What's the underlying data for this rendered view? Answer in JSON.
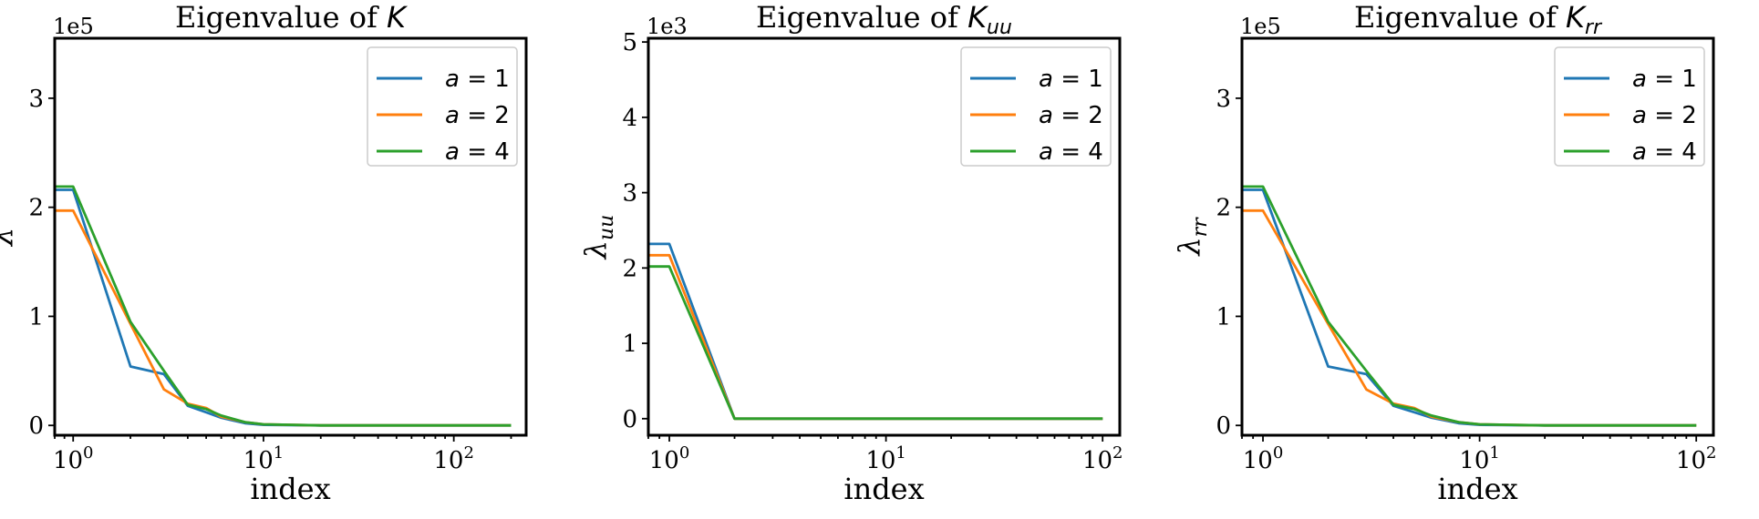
{
  "colors": {
    "a1": "#1f77b4",
    "a2": "#ff7f0e",
    "a4": "#2ca02c"
  },
  "chart_data": [
    {
      "type": "line",
      "title": "Eigenvalue of K",
      "title_parts": {
        "base": "Eigenvalue of ",
        "symbol": "K",
        "sub": ""
      },
      "xlabel": "index",
      "ylabel": "λ",
      "ylabel_parts": {
        "base": "λ",
        "sub": ""
      },
      "xscale": "log",
      "xlim": [
        0.8,
        240
      ],
      "ylim": [
        -0.09,
        3.55
      ],
      "offset_text": "1e5",
      "yticks": [
        0,
        1,
        2,
        3
      ],
      "ytick_labels": [
        "0",
        "1",
        "2",
        "3"
      ],
      "xticks": [
        1,
        10,
        100
      ],
      "xtick_labels": [
        {
          "base": "10",
          "exp": "0"
        },
        {
          "base": "10",
          "exp": "1"
        },
        {
          "base": "10",
          "exp": "2"
        }
      ],
      "legend": {
        "position": "upper right",
        "entries": [
          "a = 1",
          "a = 2",
          "a = 4"
        ]
      },
      "series": [
        {
          "name": "a = 1",
          "color_key": "a1",
          "points": [
            [
              0.8,
              2.16
            ],
            [
              1,
              2.16
            ],
            [
              2,
              0.54
            ],
            [
              3,
              0.47
            ],
            [
              4,
              0.18
            ],
            [
              5,
              0.12
            ],
            [
              6,
              0.07
            ],
            [
              8,
              0.02
            ],
            [
              10,
              0.005
            ],
            [
              20,
              0
            ],
            [
              200,
              0
            ]
          ]
        },
        {
          "name": "a = 2",
          "color_key": "a2",
          "points": [
            [
              0.8,
              1.97
            ],
            [
              1,
              1.97
            ],
            [
              2,
              0.93
            ],
            [
              3,
              0.33
            ],
            [
              4,
              0.2
            ],
            [
              5,
              0.16
            ],
            [
              6,
              0.08
            ],
            [
              8,
              0.03
            ],
            [
              10,
              0.01
            ],
            [
              20,
              0
            ],
            [
              200,
              0
            ]
          ]
        },
        {
          "name": "a = 4",
          "color_key": "a4",
          "points": [
            [
              0.8,
              2.19
            ],
            [
              1,
              2.19
            ],
            [
              2,
              0.95
            ],
            [
              3,
              0.5
            ],
            [
              4,
              0.19
            ],
            [
              5,
              0.15
            ],
            [
              6,
              0.09
            ],
            [
              8,
              0.03
            ],
            [
              10,
              0.01
            ],
            [
              20,
              0
            ],
            [
              200,
              0
            ]
          ]
        }
      ]
    },
    {
      "type": "line",
      "title": "Eigenvalue of K_uu",
      "title_parts": {
        "base": "Eigenvalue of ",
        "symbol": "K",
        "sub": "uu"
      },
      "xlabel": "index",
      "ylabel": "λ_uu",
      "ylabel_parts": {
        "base": "λ",
        "sub": "uu"
      },
      "xscale": "log",
      "xlim": [
        0.8,
        120
      ],
      "ylim": [
        -0.22,
        5.05
      ],
      "offset_text": "1e3",
      "yticks": [
        0,
        1,
        2,
        3,
        4,
        5
      ],
      "ytick_labels": [
        "0",
        "1",
        "2",
        "3",
        "4",
        "5"
      ],
      "xticks": [
        1,
        10,
        100
      ],
      "xtick_labels": [
        {
          "base": "10",
          "exp": "0"
        },
        {
          "base": "10",
          "exp": "1"
        },
        {
          "base": "10",
          "exp": "2"
        }
      ],
      "legend": {
        "position": "upper right",
        "entries": [
          "a = 1",
          "a = 2",
          "a = 4"
        ]
      },
      "series": [
        {
          "name": "a = 1",
          "color_key": "a1",
          "points": [
            [
              0.8,
              2.32
            ],
            [
              1,
              2.32
            ],
            [
              2,
              0
            ],
            [
              100,
              0
            ]
          ]
        },
        {
          "name": "a = 2",
          "color_key": "a2",
          "points": [
            [
              0.8,
              2.17
            ],
            [
              1,
              2.17
            ],
            [
              2,
              0
            ],
            [
              100,
              0
            ]
          ]
        },
        {
          "name": "a = 4",
          "color_key": "a4",
          "points": [
            [
              0.8,
              2.02
            ],
            [
              1,
              2.02
            ],
            [
              2,
              0
            ],
            [
              100,
              0
            ]
          ]
        }
      ]
    },
    {
      "type": "line",
      "title": "Eigenvalue of K_rr",
      "title_parts": {
        "base": "Eigenvalue of ",
        "symbol": "K",
        "sub": "rr"
      },
      "xlabel": "index",
      "ylabel": "λ_rr",
      "ylabel_parts": {
        "base": "λ",
        "sub": "rr"
      },
      "xscale": "log",
      "xlim": [
        0.8,
        120
      ],
      "ylim": [
        -0.09,
        3.55
      ],
      "offset_text": "1e5",
      "yticks": [
        0,
        1,
        2,
        3
      ],
      "ytick_labels": [
        "0",
        "1",
        "2",
        "3"
      ],
      "xticks": [
        1,
        10,
        100
      ],
      "xtick_labels": [
        {
          "base": "10",
          "exp": "0"
        },
        {
          "base": "10",
          "exp": "1"
        },
        {
          "base": "10",
          "exp": "2"
        }
      ],
      "legend": {
        "position": "upper right",
        "entries": [
          "a = 1",
          "a = 2",
          "a = 4"
        ]
      },
      "series": [
        {
          "name": "a = 1",
          "color_key": "a1",
          "points": [
            [
              0.8,
              2.16
            ],
            [
              1,
              2.16
            ],
            [
              2,
              0.54
            ],
            [
              3,
              0.47
            ],
            [
              4,
              0.18
            ],
            [
              5,
              0.12
            ],
            [
              6,
              0.07
            ],
            [
              8,
              0.02
            ],
            [
              10,
              0.005
            ],
            [
              20,
              0
            ],
            [
              100,
              0
            ]
          ]
        },
        {
          "name": "a = 2",
          "color_key": "a2",
          "points": [
            [
              0.8,
              1.97
            ],
            [
              1,
              1.97
            ],
            [
              2,
              0.93
            ],
            [
              3,
              0.33
            ],
            [
              4,
              0.2
            ],
            [
              5,
              0.16
            ],
            [
              6,
              0.08
            ],
            [
              8,
              0.03
            ],
            [
              10,
              0.01
            ],
            [
              20,
              0
            ],
            [
              100,
              0
            ]
          ]
        },
        {
          "name": "a = 4",
          "color_key": "a4",
          "points": [
            [
              0.8,
              2.19
            ],
            [
              1,
              2.19
            ],
            [
              2,
              0.95
            ],
            [
              3,
              0.5
            ],
            [
              4,
              0.19
            ],
            [
              5,
              0.15
            ],
            [
              6,
              0.09
            ],
            [
              8,
              0.03
            ],
            [
              10,
              0.01
            ],
            [
              20,
              0
            ],
            [
              100,
              0
            ]
          ]
        }
      ]
    }
  ]
}
